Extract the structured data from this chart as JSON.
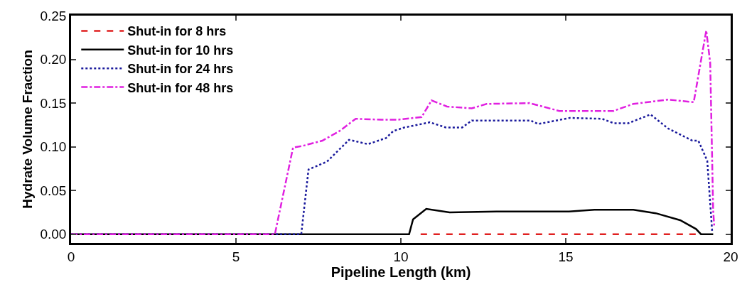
{
  "chart_data": {
    "type": "line",
    "xlabel": "Pipeline Length (km)",
    "ylabel": "Hydrate Volume Fraction",
    "xlim": [
      0,
      20
    ],
    "xticks": [
      0,
      5,
      10,
      15,
      20
    ],
    "ylim": [
      -0.01,
      0.25
    ],
    "yticks": [
      {
        "value": 0,
        "label": "0.00"
      },
      {
        "value": 0.05,
        "label": "0.05"
      },
      {
        "value": 0.1,
        "label": "0.10"
      },
      {
        "value": 0.15,
        "label": "0.15"
      },
      {
        "value": 0.2,
        "label": "0.20"
      },
      {
        "value": 0.25,
        "label": "0.25"
      }
    ],
    "legend": "top left",
    "series": [
      {
        "name": "Shut-in for 8 hrs",
        "color": "#e02020",
        "line_style": "dashed",
        "x": [
          10.6,
          19.0
        ],
        "values": [
          0,
          0
        ]
      },
      {
        "name": "Shut-in for 10 hrs",
        "color": "#000000",
        "line_style": "solid",
        "x": [
          0,
          10.25,
          10.37,
          10.77,
          11.48,
          12.9,
          14.1,
          15.1,
          15.87,
          17.05,
          17.73,
          18.47,
          18.95,
          19.1,
          19.47
        ],
        "values": [
          0,
          0,
          0.017,
          0.029,
          0.025,
          0.026,
          0.026,
          0.026,
          0.028,
          0.028,
          0.024,
          0.016,
          0.006,
          0,
          0
        ]
      },
      {
        "name": "Shut-in for 24 hrs",
        "color": "#1a1a9c",
        "line_style": "dotted",
        "x": [
          0,
          6.98,
          7.2,
          7.76,
          8.43,
          9.0,
          9.55,
          9.77,
          10.1,
          10.88,
          11.37,
          11.86,
          12.15,
          13.94,
          14.16,
          15.12,
          16.1,
          16.45,
          16.9,
          17.57,
          18.1,
          18.84,
          19.02,
          19.29,
          19.44
        ],
        "values": [
          0,
          0,
          0.074,
          0.083,
          0.108,
          0.103,
          0.11,
          0.118,
          0.122,
          0.128,
          0.122,
          0.122,
          0.13,
          0.13,
          0.126,
          0.133,
          0.132,
          0.127,
          0.127,
          0.137,
          0.121,
          0.107,
          0.107,
          0.084,
          0.003
        ]
      },
      {
        "name": "Shut-in for 48 hrs",
        "color": "#e020e0",
        "line_style": "dashdot",
        "x": [
          0,
          6.18,
          6.73,
          7.02,
          7.62,
          8.14,
          8.63,
          9.41,
          9.92,
          10.63,
          10.93,
          11.4,
          12.15,
          12.6,
          13.9,
          14.8,
          16.45,
          17.05,
          18.1,
          18.88,
          19.26,
          19.38,
          19.47,
          19.5
        ],
        "values": [
          0,
          0,
          0.099,
          0.101,
          0.107,
          0.118,
          0.132,
          0.131,
          0.131,
          0.134,
          0.153,
          0.146,
          0.144,
          0.149,
          0.15,
          0.141,
          0.141,
          0.149,
          0.154,
          0.151,
          0.233,
          0.196,
          0.027,
          0.01
        ]
      }
    ]
  }
}
